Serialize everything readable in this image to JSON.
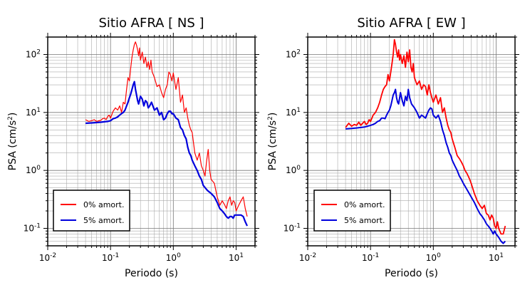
{
  "chart_data": [
    {
      "type": "line",
      "title": "Sitio AFRA [ NS ]",
      "xlabel": "Periodo (s)",
      "ylabel_main": "PSA (cm/s",
      "ylabel_sup": "2",
      "ylabel_end": ")",
      "xscale": "log",
      "yscale": "log",
      "xlim": [
        0.01,
        20
      ],
      "ylim": [
        0.05,
        200
      ],
      "grid": true,
      "legend_position": "bottom-left",
      "xticks": [
        {
          "value": 0.01,
          "base": "10",
          "exp": "-2"
        },
        {
          "value": 0.1,
          "base": "10",
          "exp": "-1"
        },
        {
          "value": 1,
          "base": "10",
          "exp": "0"
        },
        {
          "value": 10,
          "base": "10",
          "exp": "1"
        }
      ],
      "yticks": [
        {
          "value": 0.1,
          "base": "10",
          "exp": "-1"
        },
        {
          "value": 1,
          "base": "10",
          "exp": "0"
        },
        {
          "value": 10,
          "base": "10",
          "exp": "1"
        },
        {
          "value": 100,
          "base": "10",
          "exp": "2"
        }
      ],
      "series": [
        {
          "name": "0% amort.",
          "color": "#ff0000",
          "width": 1.2,
          "x": [
            0.04,
            0.045,
            0.05,
            0.055,
            0.06,
            0.065,
            0.07,
            0.075,
            0.08,
            0.085,
            0.09,
            0.095,
            0.1,
            0.11,
            0.12,
            0.13,
            0.14,
            0.15,
            0.16,
            0.17,
            0.18,
            0.19,
            0.2,
            0.21,
            0.22,
            0.23,
            0.24,
            0.25,
            0.26,
            0.27,
            0.28,
            0.29,
            0.3,
            0.32,
            0.34,
            0.36,
            0.38,
            0.4,
            0.42,
            0.44,
            0.46,
            0.48,
            0.5,
            0.55,
            0.6,
            0.65,
            0.7,
            0.75,
            0.8,
            0.85,
            0.9,
            0.95,
            1.0,
            1.1,
            1.2,
            1.3,
            1.4,
            1.5,
            1.6,
            1.7,
            1.8,
            1.9,
            2.0,
            2.2,
            2.4,
            2.6,
            2.8,
            3.0,
            3.2,
            3.4,
            3.6,
            3.8,
            4.0,
            4.5,
            5.0,
            5.5,
            6.0,
            6.5,
            7.0,
            7.5,
            8.0,
            8.5,
            9.0,
            9.5,
            10,
            11,
            12,
            13,
            14,
            15
          ],
          "y": [
            7.5,
            7.0,
            7.2,
            7.5,
            7.0,
            7.2,
            7.3,
            7.8,
            8.0,
            7.5,
            8.5,
            9.0,
            8.0,
            10.5,
            12.0,
            11.0,
            13.0,
            10.0,
            15.0,
            14.0,
            25.0,
            40.0,
            35.0,
            60.0,
            90.0,
            120.0,
            150.0,
            165.0,
            145.0,
            120.0,
            95.0,
            130.0,
            80.0,
            110.0,
            70.0,
            90.0,
            60.0,
            75.0,
            55.0,
            80.0,
            50.0,
            45.0,
            40.0,
            28.0,
            30.0,
            22.0,
            18.0,
            25.0,
            30.0,
            50.0,
            45.0,
            35.0,
            48.0,
            25.0,
            40.0,
            15.0,
            20.0,
            10.0,
            12.0,
            8.0,
            6.0,
            5.0,
            4.5,
            2.0,
            1.5,
            2.0,
            1.2,
            1.0,
            0.8,
            1.5,
            2.3,
            1.0,
            0.7,
            0.6,
            0.35,
            0.25,
            0.3,
            0.26,
            0.22,
            0.3,
            0.35,
            0.25,
            0.3,
            0.28,
            0.2,
            0.25,
            0.3,
            0.35,
            0.22,
            0.16
          ]
        },
        {
          "name": "5% amort.",
          "color": "#0000dd",
          "width": 2.2,
          "x": [
            0.04,
            0.05,
            0.06,
            0.07,
            0.08,
            0.09,
            0.1,
            0.11,
            0.12,
            0.13,
            0.14,
            0.15,
            0.16,
            0.17,
            0.18,
            0.19,
            0.2,
            0.21,
            0.22,
            0.23,
            0.24,
            0.25,
            0.26,
            0.27,
            0.28,
            0.3,
            0.32,
            0.34,
            0.36,
            0.38,
            0.4,
            0.42,
            0.45,
            0.5,
            0.55,
            0.6,
            0.65,
            0.7,
            0.75,
            0.8,
            0.85,
            0.9,
            0.95,
            1.0,
            1.1,
            1.2,
            1.3,
            1.4,
            1.5,
            1.6,
            1.7,
            1.8,
            1.9,
            2.0,
            2.2,
            2.4,
            2.6,
            2.8,
            3.0,
            3.5,
            4.0,
            4.5,
            5.0,
            5.5,
            6.0,
            6.5,
            7.0,
            7.5,
            8.0,
            8.5,
            9.0,
            9.5,
            10,
            11,
            12,
            13,
            14,
            15
          ],
          "y": [
            6.5,
            6.6,
            6.7,
            6.8,
            6.9,
            7.0,
            7.2,
            7.8,
            8.0,
            8.4,
            9.0,
            9.6,
            10.0,
            11.0,
            13.0,
            15.0,
            18.0,
            21.0,
            25.0,
            30.0,
            34.0,
            25.0,
            20.0,
            16.0,
            14.0,
            19.0,
            17.0,
            13.0,
            16.0,
            15.0,
            12.0,
            13.0,
            15.0,
            11.0,
            12.0,
            9.0,
            10.0,
            7.5,
            8.0,
            9.5,
            10.5,
            10.5,
            9.5,
            9.5,
            8.0,
            7.5,
            5.5,
            5.0,
            4.0,
            3.5,
            2.5,
            2.0,
            1.8,
            1.5,
            1.2,
            1.0,
            0.8,
            0.7,
            0.55,
            0.45,
            0.4,
            0.35,
            0.28,
            0.22,
            0.2,
            0.18,
            0.16,
            0.15,
            0.16,
            0.16,
            0.15,
            0.17,
            0.17,
            0.17,
            0.17,
            0.16,
            0.13,
            0.11
          ]
        }
      ]
    },
    {
      "type": "line",
      "title": "Sitio AFRA [ EW ]",
      "xlabel": "Periodo (s)",
      "ylabel_main": "PSA (cm/s",
      "ylabel_sup": "2",
      "ylabel_end": ")",
      "xscale": "log",
      "yscale": "log",
      "xlim": [
        0.01,
        20
      ],
      "ylim": [
        0.05,
        200
      ],
      "grid": true,
      "legend_position": "bottom-left",
      "xticks": [
        {
          "value": 0.01,
          "base": "10",
          "exp": "-2"
        },
        {
          "value": 0.1,
          "base": "10",
          "exp": "-1"
        },
        {
          "value": 1,
          "base": "10",
          "exp": "0"
        },
        {
          "value": 10,
          "base": "10",
          "exp": "1"
        }
      ],
      "yticks": [
        {
          "value": 0.1,
          "base": "10",
          "exp": "-1"
        },
        {
          "value": 1,
          "base": "10",
          "exp": "0"
        },
        {
          "value": 10,
          "base": "10",
          "exp": "1"
        },
        {
          "value": 100,
          "base": "10",
          "exp": "2"
        }
      ],
      "series": [
        {
          "name": "0% amort.",
          "color": "#ff0000",
          "width": 1.8,
          "x": [
            0.04,
            0.045,
            0.05,
            0.055,
            0.06,
            0.065,
            0.07,
            0.075,
            0.08,
            0.085,
            0.09,
            0.095,
            0.1,
            0.11,
            0.12,
            0.13,
            0.14,
            0.15,
            0.16,
            0.17,
            0.18,
            0.19,
            0.2,
            0.21,
            0.22,
            0.23,
            0.24,
            0.25,
            0.26,
            0.27,
            0.28,
            0.29,
            0.3,
            0.32,
            0.34,
            0.36,
            0.38,
            0.4,
            0.42,
            0.44,
            0.46,
            0.48,
            0.5,
            0.55,
            0.6,
            0.65,
            0.7,
            0.75,
            0.8,
            0.85,
            0.9,
            0.95,
            1.0,
            1.1,
            1.2,
            1.3,
            1.4,
            1.5,
            1.6,
            1.7,
            1.8,
            1.9,
            2.0,
            2.2,
            2.4,
            2.6,
            2.8,
            3.0,
            3.2,
            3.4,
            3.6,
            3.8,
            4.0,
            4.5,
            5.0,
            5.5,
            6.0,
            6.5,
            7.0,
            7.5,
            8.0,
            8.5,
            9.0,
            9.5,
            10,
            10.5,
            11,
            12,
            13,
            14
          ],
          "y": [
            5.5,
            6.5,
            5.8,
            6.2,
            6.0,
            6.8,
            6.0,
            6.5,
            7.0,
            6.2,
            6.5,
            7.5,
            7.0,
            9.0,
            10.0,
            12.0,
            15.0,
            20.0,
            25.0,
            28.0,
            30.0,
            45.0,
            35.0,
            50.0,
            70.0,
            100.0,
            180.0,
            150.0,
            110.0,
            90.0,
            120.0,
            80.0,
            100.0,
            70.0,
            95.0,
            60.0,
            110.0,
            75.0,
            120.0,
            60.0,
            50.0,
            70.0,
            40.0,
            30.0,
            35.0,
            25.0,
            30.0,
            28.0,
            20.0,
            30.0,
            22.0,
            18.0,
            15.0,
            20.0,
            14.0,
            18.0,
            10.0,
            12.0,
            8.0,
            6.0,
            5.0,
            4.5,
            3.5,
            2.5,
            1.8,
            1.6,
            1.4,
            1.2,
            1.0,
            0.9,
            0.8,
            0.7,
            0.6,
            0.4,
            0.3,
            0.25,
            0.22,
            0.25,
            0.18,
            0.17,
            0.14,
            0.17,
            0.15,
            0.11,
            0.1,
            0.13,
            0.1,
            0.08,
            0.08,
            0.11
          ]
        },
        {
          "name": "5% amort.",
          "color": "#0000dd",
          "width": 2.0,
          "x": [
            0.04,
            0.05,
            0.06,
            0.07,
            0.08,
            0.09,
            0.1,
            0.11,
            0.12,
            0.13,
            0.14,
            0.15,
            0.16,
            0.17,
            0.18,
            0.19,
            0.2,
            0.21,
            0.22,
            0.23,
            0.24,
            0.25,
            0.26,
            0.27,
            0.28,
            0.3,
            0.32,
            0.34,
            0.36,
            0.38,
            0.4,
            0.42,
            0.45,
            0.5,
            0.55,
            0.6,
            0.65,
            0.7,
            0.75,
            0.8,
            0.85,
            0.9,
            0.95,
            1.0,
            1.1,
            1.2,
            1.3,
            1.4,
            1.5,
            1.6,
            1.7,
            1.8,
            1.9,
            2.0,
            2.2,
            2.4,
            2.6,
            2.8,
            3.0,
            3.5,
            4.0,
            4.5,
            5.0,
            5.5,
            6.0,
            6.5,
            7.0,
            7.5,
            8.0,
            8.5,
            9.0,
            9.5,
            10,
            11,
            12,
            13,
            14
          ],
          "y": [
            5.2,
            5.3,
            5.4,
            5.5,
            5.6,
            5.8,
            6.0,
            6.2,
            6.5,
            7.0,
            7.2,
            8.0,
            8.0,
            7.8,
            9.0,
            10.0,
            11.0,
            13.0,
            16.0,
            20.0,
            22.0,
            25.0,
            18.0,
            15.0,
            14.0,
            22.0,
            16.0,
            13.0,
            19.0,
            16.0,
            25.0,
            18.0,
            14.0,
            12.0,
            10.0,
            8.0,
            9.0,
            8.5,
            8.0,
            9.5,
            11.0,
            12.0,
            11.5,
            9.0,
            8.0,
            9.0,
            7.0,
            5.0,
            4.0,
            3.0,
            2.5,
            2.0,
            1.8,
            1.5,
            1.2,
            1.0,
            0.8,
            0.7,
            0.6,
            0.45,
            0.35,
            0.28,
            0.22,
            0.18,
            0.16,
            0.14,
            0.12,
            0.11,
            0.1,
            0.09,
            0.08,
            0.09,
            0.08,
            0.07,
            0.06,
            0.055,
            0.06
          ]
        }
      ]
    }
  ]
}
